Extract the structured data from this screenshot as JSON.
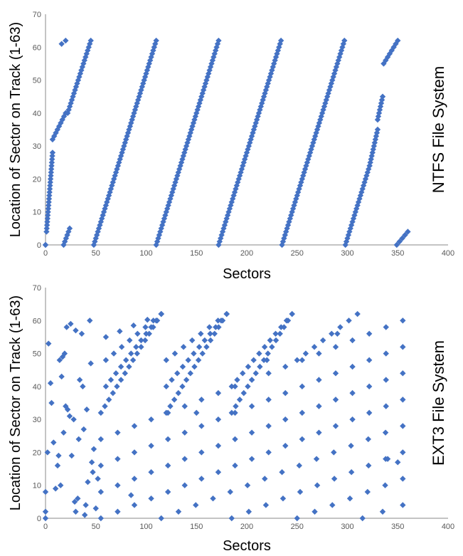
{
  "colors": {
    "marker": "#4472c4",
    "axis": "#888888",
    "text": "#000000",
    "tick": "#595959"
  },
  "chart_data": [
    {
      "type": "scatter",
      "id": "ntfs",
      "title": "NTFS File System",
      "xlabel": "Sectors",
      "ylabel": "Location of Sector on Track (1-63)",
      "xlim": [
        0,
        400
      ],
      "ylim": [
        0,
        70
      ],
      "xticks": [
        "0",
        "50",
        "100",
        "150",
        "200",
        "250",
        "300",
        "350",
        "400"
      ],
      "yticks": [
        "0",
        "10",
        "20",
        "30",
        "40",
        "50",
        "60",
        "70"
      ],
      "grid": false,
      "segments": [
        {
          "x": [
            0,
            0
          ],
          "y": [
            0,
            0
          ]
        },
        {
          "x": [
            1,
            7
          ],
          "y": [
            4,
            28
          ]
        },
        {
          "x": [
            7,
            20
          ],
          "y": [
            32,
            40
          ]
        },
        {
          "x": [
            16,
            20
          ],
          "y": [
            61,
            62
          ]
        },
        {
          "x": [
            18,
            24
          ],
          "y": [
            0,
            5
          ]
        },
        {
          "x": [
            22,
            45
          ],
          "y": [
            40,
            62
          ]
        },
        {
          "x": [
            48,
            110
          ],
          "y": [
            0,
            62
          ]
        },
        {
          "x": [
            110,
            172
          ],
          "y": [
            0,
            62
          ]
        },
        {
          "x": [
            172,
            234
          ],
          "y": [
            0,
            62
          ]
        },
        {
          "x": [
            235,
            297
          ],
          "y": [
            0,
            62
          ]
        },
        {
          "x": [
            298,
            322
          ],
          "y": [
            0,
            24
          ]
        },
        {
          "x": [
            322,
            330
          ],
          "y": [
            24,
            35
          ]
        },
        {
          "x": [
            330,
            335
          ],
          "y": [
            38,
            45
          ]
        },
        {
          "x": [
            336,
            350
          ],
          "y": [
            55,
            62
          ]
        },
        {
          "x": [
            349,
            360
          ],
          "y": [
            0,
            4
          ]
        }
      ]
    },
    {
      "type": "scatter",
      "id": "ext3",
      "title": "EXT3 File System",
      "xlabel": "Sectors",
      "ylabel": "Location of Sector on Track (1-63)",
      "xlim": [
        0,
        400
      ],
      "ylim": [
        0,
        70
      ],
      "xticks": [
        "0",
        "50",
        "100",
        "150",
        "200",
        "250",
        "300",
        "350",
        "400"
      ],
      "yticks": [
        "0",
        "10",
        "20",
        "30",
        "40",
        "50",
        "60",
        "70"
      ],
      "grid": false,
      "lines": [
        {
          "x": [
            55,
            355
          ],
          "y": [
            0,
            36
          ]
        },
        {
          "x": [
            55,
            355
          ],
          "y": [
            8,
            44
          ]
        },
        {
          "x": [
            55,
            355
          ],
          "y": [
            16,
            52
          ]
        },
        {
          "x": [
            55,
            355
          ],
          "y": [
            24,
            60
          ]
        },
        {
          "x": [
            55,
            115
          ],
          "y": [
            32,
            62
          ]
        },
        {
          "x": [
            60,
            115
          ],
          "y": [
            40,
            62
          ]
        },
        {
          "x": [
            60,
            115
          ],
          "y": [
            48,
            62
          ]
        },
        {
          "x": [
            60,
            115
          ],
          "y": [
            55,
            62
          ]
        },
        {
          "x": [
            115,
            355
          ],
          "y": [
            0,
            28
          ]
        },
        {
          "x": [
            120,
            180
          ],
          "y": [
            32,
            62
          ]
        },
        {
          "x": [
            120,
            180
          ],
          "y": [
            40,
            62
          ]
        },
        {
          "x": [
            120,
            180
          ],
          "y": [
            48,
            62
          ]
        },
        {
          "x": [
            185,
            355
          ],
          "y": [
            0,
            20
          ]
        },
        {
          "x": [
            185,
            245
          ],
          "y": [
            32,
            62
          ]
        },
        {
          "x": [
            185,
            245
          ],
          "y": [
            40,
            62
          ]
        },
        {
          "x": [
            250,
            355
          ],
          "y": [
            0,
            12
          ]
        },
        {
          "x": [
            250,
            310
          ],
          "y": [
            48,
            62
          ]
        },
        {
          "x": [
            315,
            355
          ],
          "y": [
            0,
            4
          ]
        }
      ],
      "scatter_x": [
        0,
        0,
        0,
        2,
        3,
        5,
        6,
        8,
        10,
        12,
        13,
        14,
        15,
        16,
        17,
        18,
        19,
        20,
        21,
        22,
        24,
        25,
        26,
        28,
        29,
        30,
        30,
        32,
        33,
        34,
        36,
        37,
        38,
        39,
        40,
        41,
        42,
        44,
        45,
        46,
        47,
        48,
        50,
        52,
        85,
        150,
        220,
        290,
        340,
        350
      ],
      "scatter_y": [
        0,
        2,
        8,
        20,
        53,
        41,
        35,
        23,
        9,
        16,
        19,
        48,
        10,
        43,
        49,
        26,
        50,
        34,
        58,
        33,
        31,
        59,
        19,
        30,
        5,
        2,
        57,
        6,
        24,
        42,
        56,
        40,
        27,
        1,
        4,
        33,
        11,
        60,
        47,
        17,
        14,
        21,
        3,
        12,
        7,
        32,
        48,
        56,
        18,
        17
      ]
    }
  ]
}
